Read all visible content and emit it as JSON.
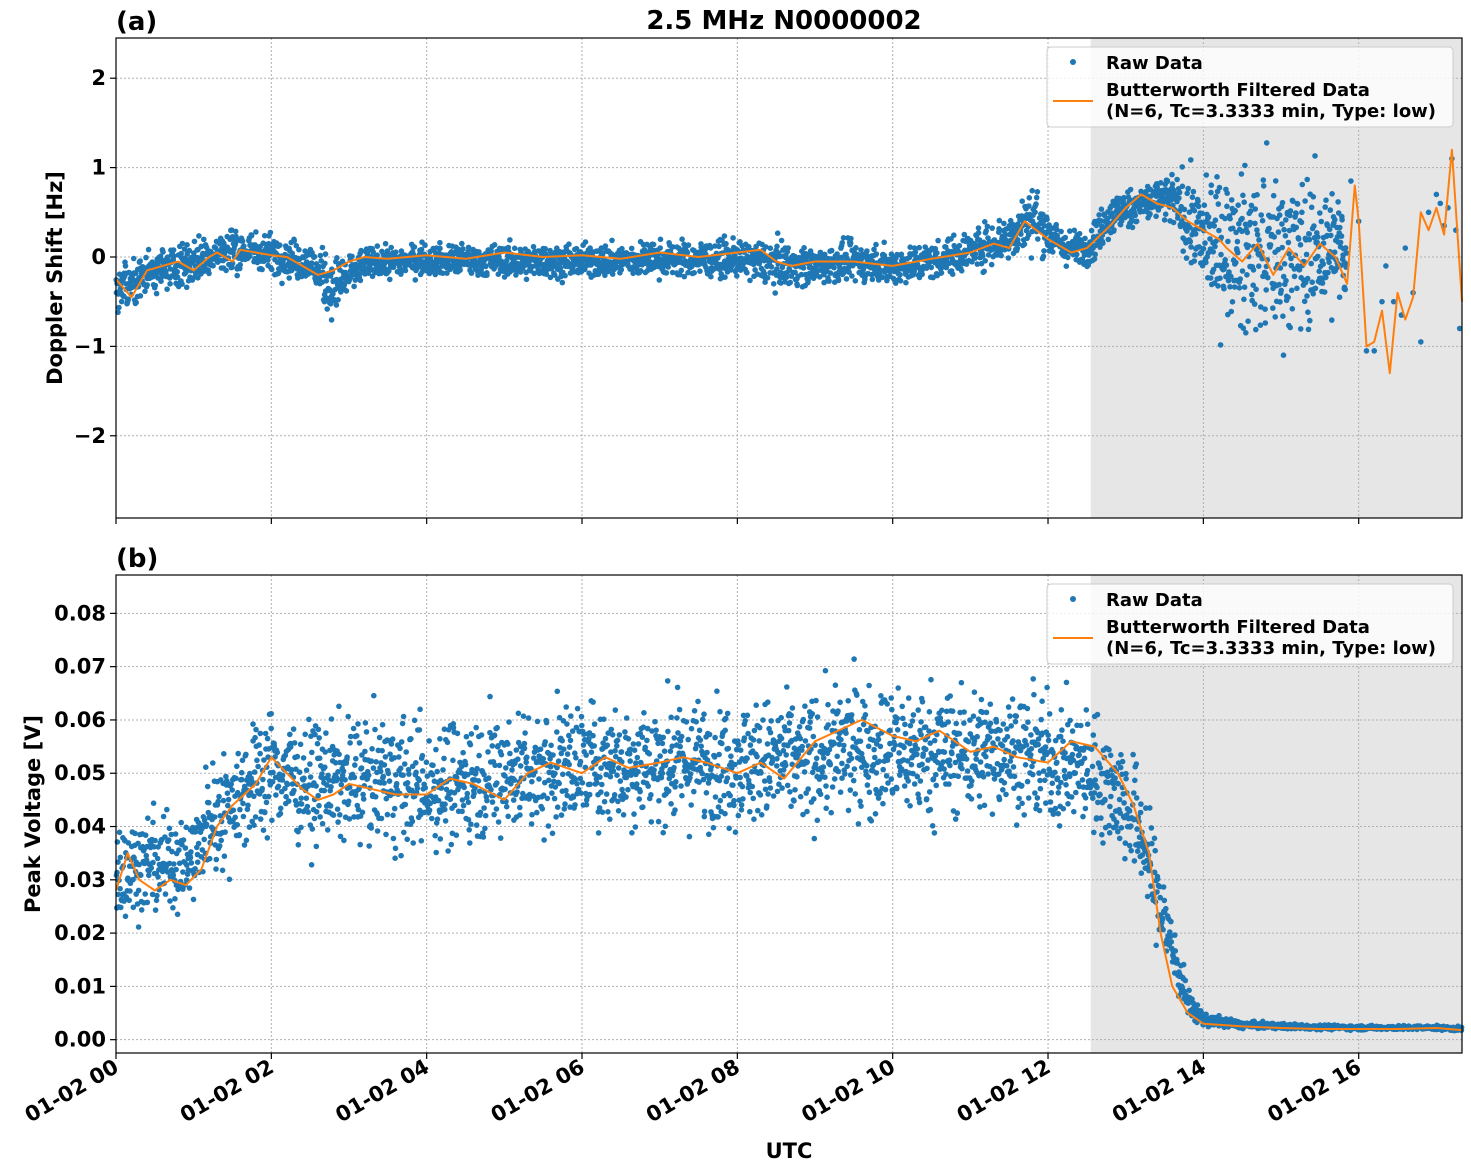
{
  "figure": {
    "title": "2.5 MHz N0000002",
    "xlabel": "UTC",
    "xtick_labels": [
      "01-02 00",
      "01-02 02",
      "01-02 04",
      "01-02 06",
      "01-02 08",
      "01-02 10",
      "01-02 12",
      "01-02 14",
      "01-02 16"
    ],
    "shaded_region_hours": [
      12.55,
      17.33
    ],
    "colors": {
      "raw": "#1f77b4",
      "filtered": "#ff7f0e",
      "shade": "#e6e6e6",
      "grid": "#b0b0b0"
    }
  },
  "chart_data": [
    {
      "panel_label": "(a)",
      "type": "scatter",
      "title": "2.5 MHz N0000002",
      "xlabel": "",
      "ylabel": "Doppler Shift [Hz]",
      "xlim_hours": [
        0,
        17.33
      ],
      "ylim": [
        -2.92,
        2.45
      ],
      "y_ticks": [
        -2,
        -1,
        0,
        1,
        2
      ],
      "y_tick_labels": [
        "−2",
        "−1",
        "0",
        "1",
        "2"
      ],
      "grid": true,
      "legend_position": "top-right",
      "legend": {
        "raw": "Raw Data",
        "filtered_line1": "Butterworth Filtered Data",
        "filtered_line2": "(N=6, Tc=3.3333 min, Type: low)"
      },
      "series": [
        {
          "name": "Butterworth Filtered Data",
          "kind": "line",
          "x_hours": [
            0,
            0.1,
            0.2,
            0.4,
            0.6,
            0.8,
            1.0,
            1.2,
            1.3,
            1.5,
            1.6,
            1.8,
            2.0,
            2.2,
            2.4,
            2.6,
            2.8,
            3.0,
            3.2,
            3.5,
            4.0,
            4.5,
            5.0,
            5.5,
            6.0,
            6.5,
            7.0,
            7.5,
            8.0,
            8.3,
            8.5,
            8.7,
            9.0,
            9.5,
            10.0,
            10.5,
            11.0,
            11.3,
            11.5,
            11.7,
            12.0,
            12.3,
            12.5,
            12.8,
            13.0,
            13.2,
            13.4,
            13.6,
            13.8,
            14.0,
            14.2,
            14.3,
            14.5,
            14.7,
            14.9,
            15.1,
            15.3,
            15.5,
            15.7,
            15.85,
            15.95,
            16.0,
            16.1,
            16.2,
            16.3,
            16.4,
            16.5,
            16.6,
            16.7,
            16.8,
            16.9,
            17.0,
            17.1,
            17.2,
            17.33
          ],
          "y": [
            -0.25,
            -0.35,
            -0.45,
            -0.15,
            -0.1,
            -0.05,
            -0.15,
            0.0,
            0.05,
            -0.05,
            0.08,
            0.05,
            0.02,
            0.0,
            -0.1,
            -0.2,
            -0.15,
            -0.05,
            0.0,
            -0.02,
            0.02,
            -0.02,
            0.05,
            0.0,
            0.02,
            -0.02,
            0.05,
            0.0,
            0.05,
            0.08,
            -0.05,
            -0.1,
            -0.05,
            -0.05,
            -0.1,
            -0.02,
            0.05,
            0.15,
            0.1,
            0.4,
            0.2,
            0.05,
            0.1,
            0.35,
            0.55,
            0.7,
            0.6,
            0.55,
            0.4,
            0.3,
            0.2,
            0.1,
            -0.05,
            0.15,
            -0.2,
            0.1,
            -0.1,
            0.15,
            0.0,
            -0.3,
            0.8,
            0.4,
            -1.0,
            -0.95,
            -0.6,
            -1.3,
            -0.4,
            -0.7,
            -0.45,
            0.5,
            0.3,
            0.55,
            0.25,
            1.2,
            -0.5
          ]
        },
        {
          "name": "Raw Data",
          "kind": "scatter",
          "envelope_x_hours": [
            0,
            0.5,
            1.0,
            1.5,
            2.0,
            2.5,
            2.8,
            3.2,
            4.0,
            5.0,
            6.0,
            7.0,
            8.0,
            8.5,
            9.0,
            9.5,
            10.0,
            10.5,
            11.0,
            11.5,
            11.8,
            12.2,
            12.5,
            12.8,
            13.2,
            13.6,
            14.0,
            14.5,
            15.0,
            15.5,
            15.85
          ],
          "envelope_low": [
            -0.9,
            -0.6,
            -0.55,
            -0.4,
            -0.35,
            -0.5,
            -1.0,
            -0.4,
            -0.35,
            -0.4,
            -0.4,
            -0.4,
            -0.4,
            -0.55,
            -0.5,
            -0.45,
            -0.5,
            -0.45,
            -0.35,
            -0.3,
            -0.2,
            -0.25,
            -0.3,
            0.0,
            0.2,
            0.1,
            -1.0,
            -1.6,
            -1.7,
            -1.5,
            -1.2
          ],
          "envelope_high": [
            0.2,
            0.3,
            0.45,
            0.55,
            0.45,
            0.35,
            0.3,
            0.25,
            0.3,
            0.3,
            0.3,
            0.35,
            0.35,
            0.4,
            0.3,
            0.35,
            0.3,
            0.35,
            0.5,
            0.75,
            1.1,
            0.45,
            0.5,
            0.9,
            1.0,
            1.2,
            1.4,
            1.7,
            1.8,
            1.6,
            1.3
          ],
          "sparse_points": [
            [
              15.9,
              0.85
            ],
            [
              16.0,
              0.4
            ],
            [
              16.1,
              -1.05
            ],
            [
              16.2,
              -1.05
            ],
            [
              16.3,
              -0.5
            ],
            [
              16.35,
              -0.1
            ],
            [
              16.45,
              -0.5
            ],
            [
              16.55,
              -0.65
            ],
            [
              16.6,
              0.1
            ],
            [
              16.7,
              -0.4
            ],
            [
              16.8,
              -0.95
            ],
            [
              16.9,
              0.5
            ],
            [
              17.0,
              0.7
            ],
            [
              17.05,
              0.6
            ],
            [
              17.1,
              0.35
            ],
            [
              17.15,
              0.55
            ],
            [
              17.2,
              1.1
            ],
            [
              17.25,
              0.3
            ],
            [
              17.3,
              -0.8
            ]
          ]
        }
      ]
    },
    {
      "panel_label": "(b)",
      "type": "scatter",
      "title": "",
      "xlabel": "UTC",
      "ylabel": "Peak Voltage [V]",
      "xlim_hours": [
        0,
        17.33
      ],
      "ylim": [
        -0.0025,
        0.0872
      ],
      "y_ticks": [
        0.0,
        0.01,
        0.02,
        0.03,
        0.04,
        0.05,
        0.06,
        0.07,
        0.08
      ],
      "y_tick_labels": [
        "0.00",
        "0.01",
        "0.02",
        "0.03",
        "0.04",
        "0.05",
        "0.06",
        "0.07",
        "0.08"
      ],
      "grid": true,
      "legend_position": "top-right",
      "legend": {
        "raw": "Raw Data",
        "filtered_line1": "Butterworth Filtered Data",
        "filtered_line2": "(N=6, Tc=3.3333 min, Type: low)"
      },
      "series": [
        {
          "name": "Butterworth Filtered Data",
          "kind": "line",
          "x_hours": [
            0,
            0.15,
            0.3,
            0.5,
            0.7,
            0.9,
            1.1,
            1.3,
            1.5,
            1.8,
            2.0,
            2.2,
            2.4,
            2.6,
            2.8,
            3.0,
            3.3,
            3.6,
            4.0,
            4.3,
            4.6,
            5.0,
            5.3,
            5.6,
            6.0,
            6.3,
            6.6,
            7.0,
            7.3,
            7.6,
            8.0,
            8.3,
            8.6,
            9.0,
            9.3,
            9.6,
            10.0,
            10.3,
            10.6,
            11.0,
            11.3,
            11.6,
            12.0,
            12.3,
            12.6,
            12.9,
            13.1,
            13.3,
            13.45,
            13.6,
            13.8,
            14.0,
            14.5,
            15.0,
            15.5,
            16.0,
            16.5,
            17.0,
            17.33
          ],
          "y": [
            0.028,
            0.035,
            0.03,
            0.028,
            0.03,
            0.029,
            0.032,
            0.04,
            0.044,
            0.048,
            0.053,
            0.05,
            0.047,
            0.045,
            0.046,
            0.048,
            0.047,
            0.046,
            0.046,
            0.049,
            0.048,
            0.045,
            0.05,
            0.052,
            0.05,
            0.053,
            0.051,
            0.052,
            0.053,
            0.052,
            0.05,
            0.052,
            0.049,
            0.056,
            0.058,
            0.06,
            0.057,
            0.056,
            0.058,
            0.054,
            0.055,
            0.053,
            0.052,
            0.056,
            0.055,
            0.05,
            0.044,
            0.035,
            0.02,
            0.01,
            0.005,
            0.003,
            0.0025,
            0.0022,
            0.002,
            0.002,
            0.002,
            0.0022,
            0.0018
          ]
        },
        {
          "name": "Raw Data",
          "kind": "scatter",
          "envelope_x_hours": [
            0,
            0.5,
            1.0,
            1.2,
            1.6,
            2.0,
            2.5,
            3.0,
            3.5,
            4.0,
            5.0,
            6.0,
            7.0,
            8.0,
            9.0,
            9.5,
            10.0,
            10.5,
            11.0,
            11.5,
            12.0,
            12.5,
            12.9,
            13.2,
            13.4,
            13.6,
            13.8,
            14.0,
            14.5,
            15.0,
            16.0,
            17.0,
            17.33
          ],
          "envelope_low": [
            0.015,
            0.014,
            0.018,
            0.022,
            0.025,
            0.03,
            0.028,
            0.028,
            0.026,
            0.025,
            0.028,
            0.03,
            0.03,
            0.03,
            0.03,
            0.032,
            0.03,
            0.03,
            0.032,
            0.034,
            0.03,
            0.03,
            0.025,
            0.018,
            0.01,
            0.004,
            0.002,
            0.0015,
            0.0015,
            0.0015,
            0.0015,
            0.0015,
            0.0012
          ],
          "envelope_high": [
            0.048,
            0.052,
            0.05,
            0.06,
            0.068,
            0.072,
            0.068,
            0.07,
            0.071,
            0.07,
            0.072,
            0.074,
            0.074,
            0.074,
            0.075,
            0.078,
            0.078,
            0.078,
            0.076,
            0.075,
            0.074,
            0.072,
            0.068,
            0.06,
            0.045,
            0.03,
            0.012,
            0.006,
            0.004,
            0.0035,
            0.003,
            0.003,
            0.0028
          ]
        }
      ]
    }
  ]
}
